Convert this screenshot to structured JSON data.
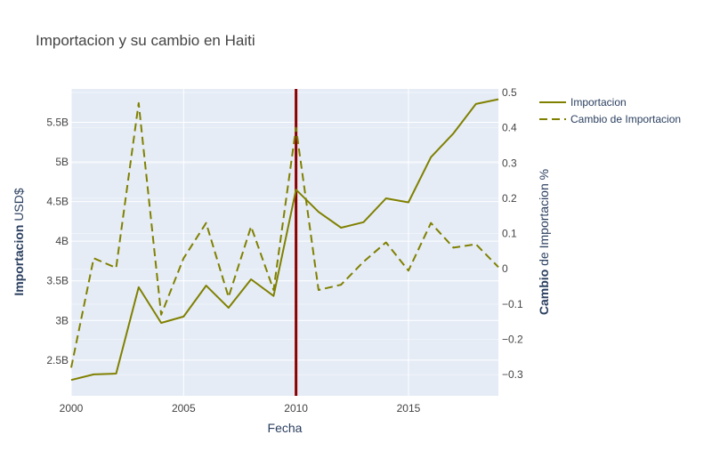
{
  "chart_data": {
    "type": "line",
    "title": "Importacion y su cambio en Haiti",
    "xlabel": "Fecha",
    "ylabel_bold": "Importacion",
    "ylabel_rest": " USD$",
    "y2label_bold": "Cambio",
    "y2label_rest": " de Importacion %",
    "x": [
      2000,
      2001,
      2002,
      2003,
      2004,
      2005,
      2006,
      2007,
      2008,
      2009,
      2010,
      2011,
      2012,
      2013,
      2014,
      2015,
      2016,
      2017,
      2018,
      2019
    ],
    "xlim": [
      2000,
      2019
    ],
    "ylim": [
      2.05,
      5.92
    ],
    "y2lim": [
      -0.36,
      0.51
    ],
    "x_ticks": [
      2000,
      2005,
      2010,
      2015
    ],
    "x_tick_labels": [
      "2000",
      "2005",
      "2010",
      "2015"
    ],
    "y_ticks": [
      2.5,
      3,
      3.5,
      4,
      4.5,
      5,
      5.5
    ],
    "y_tick_labels": [
      "2.5B",
      "3B",
      "3.5B",
      "4B",
      "4.5B",
      "5B",
      "5.5B"
    ],
    "y2_ticks": [
      -0.3,
      -0.2,
      -0.1,
      0,
      0.1,
      0.2,
      0.3,
      0.4,
      0.5
    ],
    "y2_tick_labels": [
      "−0.3",
      "−0.2",
      "−0.1",
      "0",
      "0.1",
      "0.2",
      "0.3",
      "0.4",
      "0.5"
    ],
    "series": [
      {
        "name": "Importacion",
        "axis": "left",
        "dash": "solid",
        "color": "#808000",
        "values": [
          2.25,
          2.32,
          2.33,
          3.42,
          2.97,
          3.05,
          3.44,
          3.16,
          3.52,
          3.31,
          4.65,
          4.37,
          4.17,
          4.24,
          4.54,
          4.49,
          5.06,
          5.36,
          5.73,
          5.79
        ]
      },
      {
        "name": "Cambio de Importacion",
        "axis": "right",
        "dash": "dash",
        "color": "#808000",
        "values": [
          -0.28,
          0.03,
          0.003,
          0.47,
          -0.13,
          0.03,
          0.13,
          -0.08,
          0.12,
          -0.06,
          0.4,
          -0.06,
          -0.045,
          0.02,
          0.075,
          -0.005,
          0.13,
          0.06,
          0.07,
          0.005
        ]
      }
    ],
    "vline": {
      "x": 2010,
      "color": "#8b0000"
    },
    "grid": true,
    "legend_position": "top-right",
    "colors": {
      "plot_bg": "#e5ecf6",
      "grid": "#ffffff",
      "text": "#444444",
      "axis_title": "#2a3f5f"
    }
  }
}
